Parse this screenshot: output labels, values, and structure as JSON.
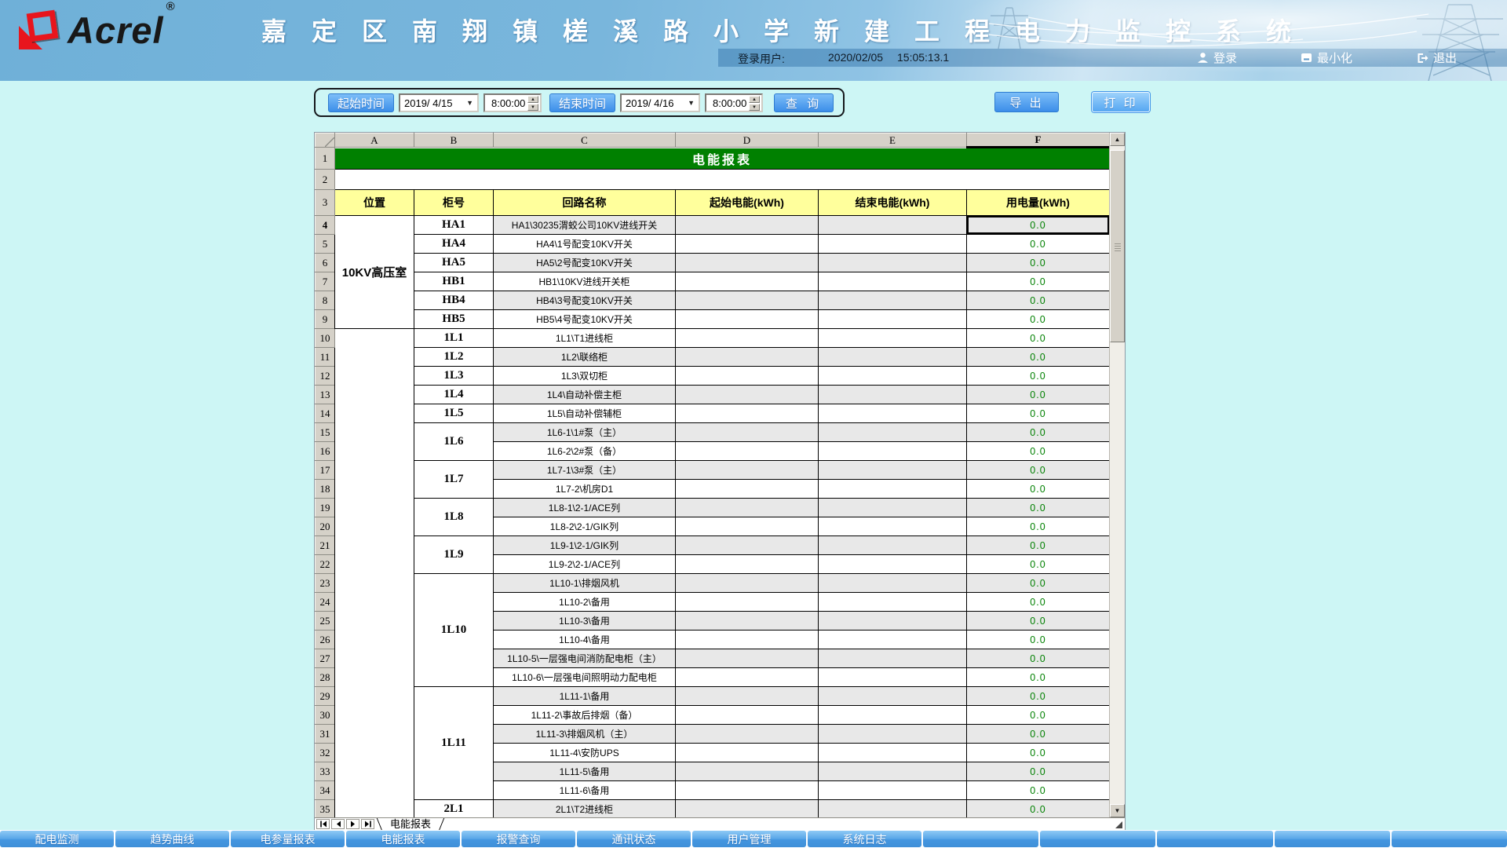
{
  "header": {
    "logo_text": "Acrel",
    "logo_reg": "®",
    "title": "嘉 定 区 南 翔 镇 槎 溪 路 小 学 新 建 工 程 电 力 监 控 系 统",
    "login_label": "登录用户:",
    "date": "2020/02/05",
    "time": "15:05:13.1",
    "login_button": "登录",
    "minimize_button": "最小化",
    "exit_button": "退出"
  },
  "toolbar": {
    "start_label": "起始时间",
    "start_date": "2019/ 4/15",
    "start_time": "8:00:00",
    "end_label": "结束时间",
    "end_date": "2019/ 4/16",
    "end_time": "8:00:00",
    "query_button": "查 询",
    "export_button": "导 出",
    "print_button": "打 印"
  },
  "colors": {
    "accent_blue": "#4a9be8",
    "banner_green": "#008000",
    "header_yellow": "#ffff9c",
    "value_green": "#008000",
    "background_cyan": "#cdf6f5",
    "shaded_row": "#e8e8e8"
  },
  "sheet": {
    "column_letters": [
      "A",
      "B",
      "C",
      "D",
      "E",
      "F"
    ],
    "selected_column": "F",
    "selected_row": 4,
    "banner": {
      "n": "1",
      "text": "电能报表"
    },
    "blank": {
      "n": "2"
    },
    "header": {
      "n": "3",
      "cells": [
        "位置",
        "柜号",
        "回路名称",
        "起始电能(kWh)",
        "结束电能(kWh)",
        "用电量(kWh)"
      ]
    },
    "tab_name": "电能报表",
    "rows": [
      {
        "n": 4,
        "a": {
          "label": "10KV高压室",
          "span": 6
        },
        "b": {
          "label": "HA1"
        },
        "c": "HA1\\30235渭蛟公司10KV进线开关",
        "f": "0.0",
        "shaded": true,
        "selected": true
      },
      {
        "n": 5,
        "b": {
          "label": "HA4"
        },
        "c": "HA4\\1号配变10KV开关",
        "f": "0.0"
      },
      {
        "n": 6,
        "b": {
          "label": "HA5"
        },
        "c": "HA5\\2号配变10KV开关",
        "f": "0.0",
        "shaded": true
      },
      {
        "n": 7,
        "b": {
          "label": "HB1"
        },
        "c": "HB1\\10KV进线开关柜",
        "f": "0.0"
      },
      {
        "n": 8,
        "b": {
          "label": "HB4"
        },
        "c": "HB4\\3号配变10KV开关",
        "f": "0.0",
        "shaded": true
      },
      {
        "n": 9,
        "b": {
          "label": "HB5"
        },
        "c": "HB5\\4号配变10KV开关",
        "f": "0.0"
      },
      {
        "n": 10,
        "a": {
          "label": "",
          "span": 26
        },
        "b": {
          "label": "1L1"
        },
        "c": "1L1\\T1进线柜",
        "f": "0.0"
      },
      {
        "n": 11,
        "b": {
          "label": "1L2"
        },
        "c": "1L2\\联络柜",
        "f": "0.0",
        "shaded": true
      },
      {
        "n": 12,
        "b": {
          "label": "1L3"
        },
        "c": "1L3\\双切柜",
        "f": "0.0"
      },
      {
        "n": 13,
        "b": {
          "label": "1L4"
        },
        "c": "1L4\\自动补偿主柜",
        "f": "0.0",
        "shaded": true
      },
      {
        "n": 14,
        "b": {
          "label": "1L5"
        },
        "c": "1L5\\自动补偿辅柜",
        "f": "0.0"
      },
      {
        "n": 15,
        "b": {
          "label": "1L6",
          "span": 2
        },
        "c": "1L6-1\\1#泵（主）",
        "f": "0.0",
        "shaded": true
      },
      {
        "n": 16,
        "c": "1L6-2\\2#泵（备）",
        "f": "0.0"
      },
      {
        "n": 17,
        "b": {
          "label": "1L7",
          "span": 2
        },
        "c": "1L7-1\\3#泵（主）",
        "f": "0.0",
        "shaded": true
      },
      {
        "n": 18,
        "c": "1L7-2\\机房D1",
        "f": "0.0"
      },
      {
        "n": 19,
        "b": {
          "label": "1L8",
          "span": 2
        },
        "c": "1L8-1\\2-1/ACE列",
        "f": "0.0",
        "shaded": true
      },
      {
        "n": 20,
        "c": "1L8-2\\2-1/GIK列",
        "f": "0.0"
      },
      {
        "n": 21,
        "b": {
          "label": "1L9",
          "span": 2
        },
        "c": "1L9-1\\2-1/GIK列",
        "f": "0.0",
        "shaded": true
      },
      {
        "n": 22,
        "c": "1L9-2\\2-1/ACE列",
        "f": "0.0"
      },
      {
        "n": 23,
        "b": {
          "label": "1L10",
          "span": 6
        },
        "c": "1L10-1\\排烟风机",
        "f": "0.0",
        "shaded": true
      },
      {
        "n": 24,
        "c": "1L10-2\\备用",
        "f": "0.0"
      },
      {
        "n": 25,
        "c": "1L10-3\\备用",
        "f": "0.0",
        "shaded": true
      },
      {
        "n": 26,
        "c": "1L10-4\\备用",
        "f": "0.0"
      },
      {
        "n": 27,
        "c": "1L10-5\\一层强电间消防配电柜（主）",
        "f": "0.0",
        "shaded": true
      },
      {
        "n": 28,
        "c": "1L10-6\\一层强电间照明动力配电柜",
        "f": "0.0"
      },
      {
        "n": 29,
        "b": {
          "label": "1L11",
          "span": 6
        },
        "c": "1L11-1\\备用",
        "f": "0.0",
        "shaded": true
      },
      {
        "n": 30,
        "c": "1L11-2\\事故后排烟（备）",
        "f": "0.0"
      },
      {
        "n": 31,
        "c": "1L11-3\\排烟风机（主）",
        "f": "0.0",
        "shaded": true
      },
      {
        "n": 32,
        "c": "1L11-4\\安防UPS",
        "f": "0.0"
      },
      {
        "n": 33,
        "c": "1L11-5\\备用",
        "f": "0.0",
        "shaded": true
      },
      {
        "n": 34,
        "c": "1L11-6\\备用",
        "f": "0.0"
      },
      {
        "n": 35,
        "b": {
          "label": "2L1"
        },
        "c": "2L1\\T2进线柜",
        "f": "0.0",
        "shaded": true
      }
    ]
  },
  "bottom_nav": {
    "items": [
      "配电监测",
      "趋势曲线",
      "电参量报表",
      "电能报表",
      "报警查询",
      "通讯状态",
      "用户管理",
      "系统日志"
    ],
    "empty_slots": 5
  }
}
